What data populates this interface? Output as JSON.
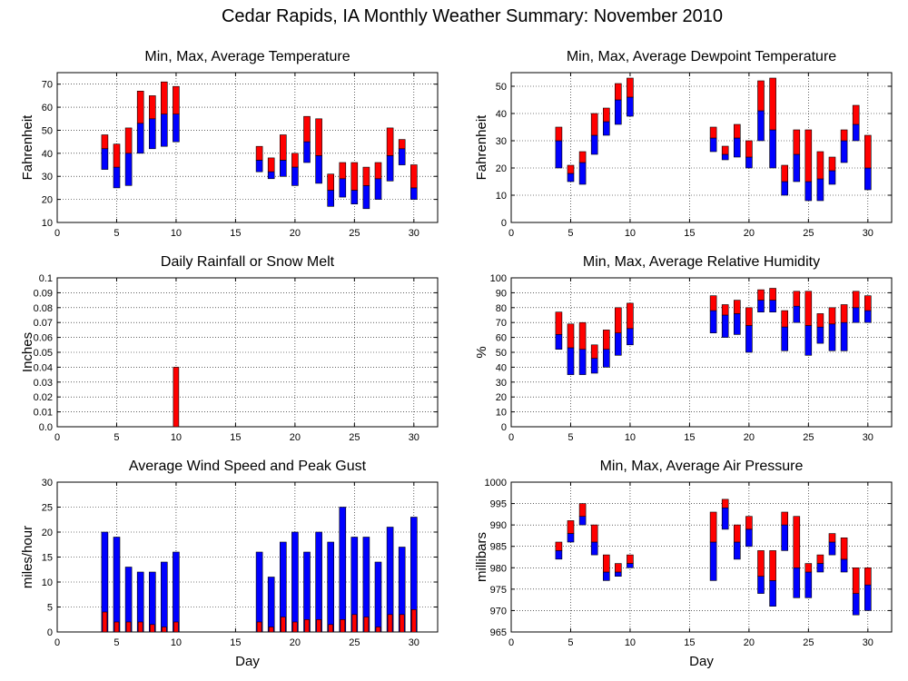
{
  "title": "Cedar Rapids, IA Monthly Weather Summary: November 2010",
  "colors": {
    "lower": "#0000ff",
    "upper": "#ff0000",
    "grid": "#000000"
  },
  "chart_data": [
    {
      "id": "temp",
      "type": "bar",
      "style": "minmax",
      "title": "Min, Max, Average Temperature",
      "xlabel": "",
      "ylabel": "Fahrenheit",
      "xlim": [
        0,
        32
      ],
      "ylim": [
        10,
        75
      ],
      "xticks": [
        0,
        5,
        10,
        15,
        20,
        25,
        30
      ],
      "yticks": [
        10,
        20,
        30,
        40,
        50,
        60,
        70
      ],
      "series": [
        {
          "x": 4,
          "min": 33,
          "avg": 42,
          "max": 48
        },
        {
          "x": 5,
          "min": 25,
          "avg": 34,
          "max": 44
        },
        {
          "x": 6,
          "min": 26,
          "avg": 40,
          "max": 51
        },
        {
          "x": 7,
          "min": 40,
          "avg": 53,
          "max": 67
        },
        {
          "x": 8,
          "min": 42,
          "avg": 55,
          "max": 65
        },
        {
          "x": 9,
          "min": 43,
          "avg": 57,
          "max": 71
        },
        {
          "x": 10,
          "min": 45,
          "avg": 57,
          "max": 69
        },
        {
          "x": 17,
          "min": 32,
          "avg": 37,
          "max": 43
        },
        {
          "x": 18,
          "min": 29,
          "avg": 32,
          "max": 38
        },
        {
          "x": 19,
          "min": 30,
          "avg": 37,
          "max": 48
        },
        {
          "x": 20,
          "min": 26,
          "avg": 34,
          "max": 40
        },
        {
          "x": 21,
          "min": 36,
          "avg": 45,
          "max": 56
        },
        {
          "x": 22,
          "min": 27,
          "avg": 39,
          "max": 55
        },
        {
          "x": 23,
          "min": 17,
          "avg": 24,
          "max": 31
        },
        {
          "x": 24,
          "min": 21,
          "avg": 29,
          "max": 36
        },
        {
          "x": 25,
          "min": 18,
          "avg": 24,
          "max": 36
        },
        {
          "x": 26,
          "min": 16,
          "avg": 26,
          "max": 34
        },
        {
          "x": 27,
          "min": 20,
          "avg": 29,
          "max": 36
        },
        {
          "x": 28,
          "min": 28,
          "avg": 39,
          "max": 51
        },
        {
          "x": 29,
          "min": 35,
          "avg": 42,
          "max": 46
        },
        {
          "x": 30,
          "min": 20,
          "avg": 25,
          "max": 35
        }
      ]
    },
    {
      "id": "dew",
      "type": "bar",
      "style": "minmax",
      "title": "Min, Max, Average Dewpoint Temperature",
      "xlabel": "",
      "ylabel": "Fahrenheit",
      "xlim": [
        0,
        32
      ],
      "ylim": [
        0,
        55
      ],
      "xticks": [
        0,
        5,
        10,
        15,
        20,
        25,
        30
      ],
      "yticks": [
        0,
        10,
        20,
        30,
        40,
        50
      ],
      "series": [
        {
          "x": 4,
          "min": 20,
          "avg": 30,
          "max": 35
        },
        {
          "x": 5,
          "min": 15,
          "avg": 18,
          "max": 21
        },
        {
          "x": 6,
          "min": 14,
          "avg": 22,
          "max": 26
        },
        {
          "x": 7,
          "min": 25,
          "avg": 32,
          "max": 40
        },
        {
          "x": 8,
          "min": 32,
          "avg": 37,
          "max": 42
        },
        {
          "x": 9,
          "min": 36,
          "avg": 45,
          "max": 51
        },
        {
          "x": 10,
          "min": 39,
          "avg": 46,
          "max": 53
        },
        {
          "x": 17,
          "min": 26,
          "avg": 31,
          "max": 35
        },
        {
          "x": 18,
          "min": 23,
          "avg": 25,
          "max": 28
        },
        {
          "x": 19,
          "min": 24,
          "avg": 31,
          "max": 36
        },
        {
          "x": 20,
          "min": 20,
          "avg": 24,
          "max": 30
        },
        {
          "x": 21,
          "min": 30,
          "avg": 41,
          "max": 52
        },
        {
          "x": 22,
          "min": 20,
          "avg": 34,
          "max": 53
        },
        {
          "x": 23,
          "min": 10,
          "avg": 15,
          "max": 21
        },
        {
          "x": 24,
          "min": 15,
          "avg": 25,
          "max": 34
        },
        {
          "x": 25,
          "min": 8,
          "avg": 15,
          "max": 34
        },
        {
          "x": 26,
          "min": 8,
          "avg": 16,
          "max": 26
        },
        {
          "x": 27,
          "min": 14,
          "avg": 19,
          "max": 24
        },
        {
          "x": 28,
          "min": 22,
          "avg": 30,
          "max": 34
        },
        {
          "x": 29,
          "min": 30,
          "avg": 36,
          "max": 43
        },
        {
          "x": 30,
          "min": 12,
          "avg": 20,
          "max": 32
        }
      ]
    },
    {
      "id": "rain",
      "type": "bar",
      "style": "single",
      "title": "Daily Rainfall or Snow Melt",
      "xlabel": "",
      "ylabel": "Inches",
      "xlim": [
        0,
        32
      ],
      "ylim": [
        0,
        0.1
      ],
      "xticks": [
        0,
        5,
        10,
        15,
        20,
        25,
        30
      ],
      "yticks": [
        0.0,
        0.01,
        0.02,
        0.03,
        0.04,
        0.05,
        0.06,
        0.07,
        0.08,
        0.09,
        0.1
      ],
      "ytick_labels": [
        "0.0",
        "0.01",
        "0.02",
        "0.03",
        "0.04",
        "0.05",
        "0.06",
        "0.07",
        "0.08",
        "0.09",
        "0.1"
      ],
      "series": [
        {
          "x": 10,
          "value": 0.04
        }
      ]
    },
    {
      "id": "rh",
      "type": "bar",
      "style": "minmax",
      "title": "Min, Max, Average Relative Humidity",
      "xlabel": "",
      "ylabel": "%",
      "xlim": [
        0,
        32
      ],
      "ylim": [
        0,
        100
      ],
      "xticks": [
        0,
        5,
        10,
        15,
        20,
        25,
        30
      ],
      "yticks": [
        0,
        10,
        20,
        30,
        40,
        50,
        60,
        70,
        80,
        90,
        100
      ],
      "series": [
        {
          "x": 4,
          "min": 52,
          "avg": 62,
          "max": 77
        },
        {
          "x": 5,
          "min": 35,
          "avg": 53,
          "max": 69
        },
        {
          "x": 6,
          "min": 35,
          "avg": 52,
          "max": 70
        },
        {
          "x": 7,
          "min": 36,
          "avg": 46,
          "max": 55
        },
        {
          "x": 8,
          "min": 40,
          "avg": 52,
          "max": 65
        },
        {
          "x": 9,
          "min": 48,
          "avg": 63,
          "max": 80
        },
        {
          "x": 10,
          "min": 55,
          "avg": 66,
          "max": 83
        },
        {
          "x": 17,
          "min": 63,
          "avg": 78,
          "max": 88
        },
        {
          "x": 18,
          "min": 60,
          "avg": 75,
          "max": 82
        },
        {
          "x": 19,
          "min": 62,
          "avg": 76,
          "max": 85
        },
        {
          "x": 20,
          "min": 50,
          "avg": 68,
          "max": 80
        },
        {
          "x": 21,
          "min": 77,
          "avg": 85,
          "max": 92
        },
        {
          "x": 22,
          "min": 77,
          "avg": 85,
          "max": 93
        },
        {
          "x": 23,
          "min": 51,
          "avg": 67,
          "max": 78
        },
        {
          "x": 24,
          "min": 70,
          "avg": 81,
          "max": 91
        },
        {
          "x": 25,
          "min": 48,
          "avg": 68,
          "max": 91
        },
        {
          "x": 26,
          "min": 56,
          "avg": 67,
          "max": 76
        },
        {
          "x": 27,
          "min": 51,
          "avg": 69,
          "max": 80
        },
        {
          "x": 28,
          "min": 51,
          "avg": 70,
          "max": 82
        },
        {
          "x": 29,
          "min": 70,
          "avg": 80,
          "max": 91
        },
        {
          "x": 30,
          "min": 70,
          "avg": 78,
          "max": 88
        }
      ]
    },
    {
      "id": "wind",
      "type": "bar",
      "style": "gust",
      "title": "Average Wind Speed and Peak Gust",
      "xlabel": "Day",
      "ylabel": "miles/hour",
      "xlim": [
        0,
        32
      ],
      "ylim": [
        0,
        30
      ],
      "xticks": [
        0,
        5,
        10,
        15,
        20,
        25,
        30
      ],
      "yticks": [
        0,
        5,
        10,
        15,
        20,
        25,
        30
      ],
      "series": [
        {
          "x": 4,
          "avg": 4,
          "gust": 20
        },
        {
          "x": 5,
          "avg": 2,
          "gust": 19
        },
        {
          "x": 6,
          "avg": 2,
          "gust": 13
        },
        {
          "x": 7,
          "avg": 2,
          "gust": 12
        },
        {
          "x": 8,
          "avg": 1.5,
          "gust": 12
        },
        {
          "x": 9,
          "avg": 1,
          "gust": 14
        },
        {
          "x": 10,
          "avg": 2,
          "gust": 16
        },
        {
          "x": 17,
          "avg": 2,
          "gust": 16
        },
        {
          "x": 18,
          "avg": 1,
          "gust": 11
        },
        {
          "x": 19,
          "avg": 3,
          "gust": 18
        },
        {
          "x": 20,
          "avg": 2,
          "gust": 20
        },
        {
          "x": 21,
          "avg": 2.5,
          "gust": 16
        },
        {
          "x": 22,
          "avg": 2.5,
          "gust": 20
        },
        {
          "x": 23,
          "avg": 1.5,
          "gust": 18
        },
        {
          "x": 24,
          "avg": 2.5,
          "gust": 25
        },
        {
          "x": 25,
          "avg": 3.5,
          "gust": 19
        },
        {
          "x": 26,
          "avg": 3,
          "gust": 19
        },
        {
          "x": 27,
          "avg": 1,
          "gust": 14
        },
        {
          "x": 28,
          "avg": 3.5,
          "gust": 21
        },
        {
          "x": 29,
          "avg": 3.5,
          "gust": 17
        },
        {
          "x": 30,
          "avg": 4.5,
          "gust": 23
        }
      ]
    },
    {
      "id": "press",
      "type": "bar",
      "style": "minmax",
      "title": "Min, Max, Average Air Pressure",
      "xlabel": "Day",
      "ylabel": "millibars",
      "xlim": [
        0,
        32
      ],
      "ylim": [
        965,
        1000
      ],
      "xticks": [
        0,
        5,
        10,
        15,
        20,
        25,
        30
      ],
      "yticks": [
        965,
        970,
        975,
        980,
        985,
        990,
        995,
        1000
      ],
      "series": [
        {
          "x": 4,
          "min": 982,
          "avg": 984,
          "max": 986
        },
        {
          "x": 5,
          "min": 986,
          "avg": 988,
          "max": 991
        },
        {
          "x": 6,
          "min": 990,
          "avg": 992,
          "max": 995
        },
        {
          "x": 7,
          "min": 983,
          "avg": 986,
          "max": 990
        },
        {
          "x": 8,
          "min": 977,
          "avg": 979,
          "max": 983
        },
        {
          "x": 9,
          "min": 978,
          "avg": 979,
          "max": 981
        },
        {
          "x": 10,
          "min": 980,
          "avg": 981,
          "max": 983
        },
        {
          "x": 17,
          "min": 977,
          "avg": 986,
          "max": 993
        },
        {
          "x": 18,
          "min": 989,
          "avg": 994,
          "max": 996
        },
        {
          "x": 19,
          "min": 982,
          "avg": 986,
          "max": 990
        },
        {
          "x": 20,
          "min": 985,
          "avg": 989,
          "max": 992
        },
        {
          "x": 21,
          "min": 974,
          "avg": 978,
          "max": 984
        },
        {
          "x": 22,
          "min": 971,
          "avg": 977,
          "max": 984
        },
        {
          "x": 23,
          "min": 984,
          "avg": 990,
          "max": 993
        },
        {
          "x": 24,
          "min": 973,
          "avg": 980,
          "max": 992
        },
        {
          "x": 25,
          "min": 973,
          "avg": 979,
          "max": 981
        },
        {
          "x": 26,
          "min": 979,
          "avg": 981,
          "max": 983
        },
        {
          "x": 27,
          "min": 983,
          "avg": 986,
          "max": 988
        },
        {
          "x": 28,
          "min": 979,
          "avg": 982,
          "max": 987
        },
        {
          "x": 29,
          "min": 969,
          "avg": 974,
          "max": 980
        },
        {
          "x": 30,
          "min": 970,
          "avg": 976,
          "max": 980
        }
      ]
    }
  ]
}
